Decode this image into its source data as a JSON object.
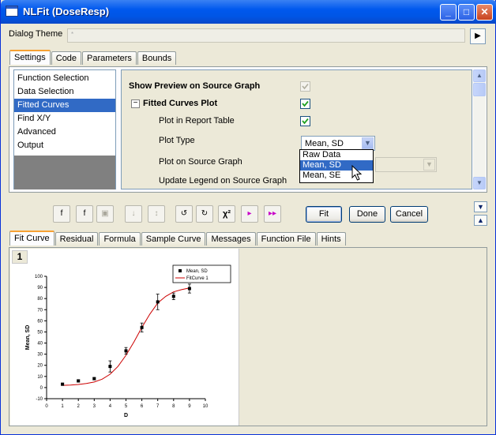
{
  "window": {
    "title": "NLFit (DoseResp)"
  },
  "dialog_theme": {
    "label": "Dialog Theme",
    "value": "*"
  },
  "top_tabs": [
    "Settings",
    "Code",
    "Parameters",
    "Bounds"
  ],
  "tree_items": [
    "Function Selection",
    "Data Selection",
    "Fitted Curves",
    "Find X/Y",
    "Advanced",
    "Output"
  ],
  "properties": {
    "show_preview": "Show Preview on Source Graph",
    "fitted_curves_plot": "Fitted Curves Plot",
    "plot_in_report": "Plot in Report Table",
    "plot_type": "Plot Type",
    "plot_type_value": "Mean, SD",
    "plot_on_source": "Plot on Source Graph",
    "update_legend": "Update Legend on Source Graph"
  },
  "dropdown_options": [
    "Raw Data",
    "Mean, SD",
    "Mean, SE"
  ],
  "toolbar": {
    "chi_label": "χ²"
  },
  "buttons": {
    "fit": "Fit",
    "done": "Done",
    "cancel": "Cancel"
  },
  "bottom_tabs": [
    "Fit Curve",
    "Residual",
    "Formula",
    "Sample Curve",
    "Messages",
    "Function File",
    "Hints"
  ],
  "page_number": "1",
  "colors": {
    "title_bar": "#0058ee",
    "selection": "#316ac5",
    "fit_curve": "#cc0000"
  },
  "chart_data": {
    "type": "scatter",
    "xlabel": "D",
    "ylabel": "Mean, SD",
    "xlim": [
      0,
      10
    ],
    "ylim": [
      -10,
      100
    ],
    "xticks": [
      0,
      1,
      2,
      3,
      4,
      5,
      6,
      7,
      8,
      9,
      10
    ],
    "yticks": [
      -10,
      0,
      10,
      20,
      30,
      40,
      50,
      60,
      70,
      80,
      90,
      100
    ],
    "legend": [
      "Mean, SD",
      "FitCurve 1"
    ],
    "legend_position": "top-right",
    "series": [
      {
        "name": "Mean, SD",
        "x": [
          1,
          2,
          3,
          4,
          5,
          6,
          7,
          8,
          9
        ],
        "y": [
          3,
          6,
          8,
          19,
          33,
          54,
          77,
          82,
          89
        ],
        "err": [
          1,
          1,
          1,
          5,
          3,
          4,
          7,
          3,
          4
        ]
      },
      {
        "name": "FitCurve 1",
        "x": [
          1,
          1.5,
          2,
          2.5,
          3,
          3.5,
          4,
          4.5,
          5,
          5.5,
          6,
          6.5,
          7,
          7.5,
          8,
          8.5,
          9
        ],
        "y": [
          2,
          2.3,
          2.8,
          3.6,
          5,
          7.5,
          12,
          19,
          29,
          41,
          54,
          66,
          76,
          82,
          86,
          88,
          89.5
        ]
      }
    ]
  }
}
